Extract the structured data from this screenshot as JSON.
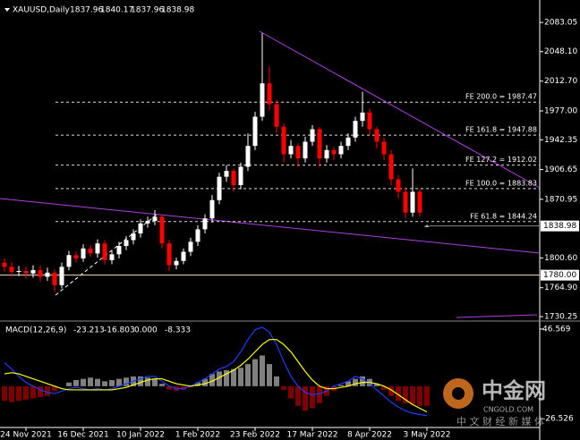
{
  "chart_data": [
    {
      "type": "candlestick",
      "title": "XAUUSD,Daily",
      "title_values": [
        1837.96,
        1840.17,
        1837.96,
        1838.98
      ],
      "categories": [
        null,
        null,
        null,
        "24 Nov 2021",
        null,
        null,
        null,
        null,
        null,
        null,
        null,
        "16 Dec 2021",
        null,
        null,
        null,
        null,
        null,
        null,
        null,
        "10 Jan 2022",
        null,
        null,
        null,
        null,
        null,
        null,
        null,
        "1 Feb 2022",
        null,
        null,
        null,
        null,
        null,
        null,
        null,
        "23 Feb 2022",
        null,
        null,
        null,
        null,
        null,
        null,
        null,
        "17 Mar 2022",
        null,
        null,
        null,
        null,
        null,
        null,
        null,
        "8 Apr 2022",
        null,
        null,
        null,
        null,
        null,
        null,
        null,
        "3 May 2022"
      ],
      "open": [
        1795,
        1790,
        1784,
        1785,
        1782,
        1786,
        1778,
        1783,
        1768,
        1790,
        1804,
        1800,
        1812,
        1806,
        1818,
        1798,
        1805,
        1815,
        1822,
        1830,
        1842,
        1845,
        1850,
        1818,
        1792,
        1797,
        1808,
        1820,
        1835,
        1848,
        1870,
        1898,
        1905,
        1888,
        1910,
        1935,
        1970,
        2010,
        1985,
        1958,
        1925,
        1935,
        1920,
        1940,
        1955,
        1920,
        1930,
        1925,
        1935,
        1945,
        1965,
        1975,
        1955,
        1940,
        1925,
        1895,
        1880,
        1855,
        1880,
        1837.96
      ],
      "high": [
        1800,
        1796,
        1791,
        1790,
        1792,
        1792,
        1789,
        1787,
        1795,
        1809,
        1808,
        1817,
        1816,
        1823,
        1822,
        1810,
        1820,
        1827,
        1835,
        1847,
        1850,
        1858,
        1853,
        1822,
        1801,
        1812,
        1825,
        1840,
        1853,
        1876,
        1903,
        1912,
        1908,
        1915,
        1950,
        1976,
        2070,
        2030,
        1990,
        1962,
        1942,
        1938,
        1946,
        1960,
        1958,
        1936,
        1934,
        1940,
        1950,
        1970,
        2000,
        1980,
        1958,
        1945,
        1930,
        1900,
        1885,
        1908,
        1883,
        1840.17
      ],
      "low": [
        1784,
        1778,
        1779,
        1776,
        1777,
        1772,
        1773,
        1760,
        1764,
        1786,
        1795,
        1796,
        1802,
        1801,
        1793,
        1793,
        1800,
        1810,
        1817,
        1825,
        1837,
        1840,
        1812,
        1785,
        1787,
        1793,
        1803,
        1815,
        1830,
        1843,
        1865,
        1892,
        1880,
        1883,
        1905,
        1930,
        1965,
        1978,
        1950,
        1915,
        1920,
        1910,
        1915,
        1935,
        1910,
        1915,
        1918,
        1920,
        1930,
        1940,
        1958,
        1948,
        1932,
        1918,
        1888,
        1872,
        1848,
        1850,
        1850,
        1837.96
      ],
      "close": [
        1790,
        1784,
        1785,
        1782,
        1786,
        1778,
        1783,
        1768,
        1790,
        1804,
        1800,
        1812,
        1806,
        1818,
        1798,
        1805,
        1815,
        1822,
        1830,
        1842,
        1845,
        1850,
        1818,
        1792,
        1797,
        1808,
        1820,
        1835,
        1848,
        1870,
        1898,
        1905,
        1888,
        1910,
        1935,
        1970,
        2010,
        1985,
        1958,
        1925,
        1935,
        1920,
        1940,
        1955,
        1920,
        1930,
        1925,
        1935,
        1945,
        1965,
        1975,
        1955,
        1940,
        1925,
        1895,
        1880,
        1855,
        1880,
        1855,
        1838.98
      ],
      "up_color": "#ffffff",
      "down_color": "#ff0000",
      "ylim": [
        1726,
        2110
      ],
      "yticks": [
        {
          "value": 2083.05,
          "label": "2083.05"
        },
        {
          "value": 2048.1,
          "label": "2048.10"
        },
        {
          "value": 2012.7,
          "label": "2012.70"
        },
        {
          "value": 1977,
          "label": "1977.00"
        },
        {
          "value": 1942.35,
          "label": "1942.35"
        },
        {
          "value": 1906.65,
          "label": "1906.65"
        },
        {
          "value": 1870.95,
          "label": "1870.95"
        },
        {
          "value": 1800.6,
          "label": "1800.60"
        },
        {
          "value": 1764.9,
          "label": "1764.90"
        },
        {
          "value": 1730.25,
          "label": "1730.25"
        }
      ],
      "fib_levels": [
        {
          "value": 1987.47,
          "label": "FE 200.0 = 1987.47"
        },
        {
          "value": 1947.88,
          "label": "FE 161.8 = 1947.88"
        },
        {
          "value": 1912.02,
          "label": "FE 127.2 = 1912.02"
        },
        {
          "value": 1883.83,
          "label": "FE 100.0 = 1883.83"
        },
        {
          "value": 1844.24,
          "label": "FE 61.8 = 1844.24"
        }
      ],
      "hline": {
        "value": 1780,
        "label": "1780.00"
      }
    },
    {
      "type": "macd",
      "title": "MACD(12,26,9)",
      "title_values": [
        {
          "value": -23.213,
          "label": "-23.213"
        },
        {
          "value": -16.803,
          "label": "-16.803"
        },
        {
          "value": 0,
          "label": "0.000"
        },
        {
          "value": -8.333,
          "label": "-8.333"
        }
      ],
      "histogram": [
        -12,
        -13,
        -12,
        -11,
        -10,
        -9,
        -8,
        -4,
        0,
        3,
        5,
        6,
        7,
        6,
        4,
        5,
        6,
        7,
        8,
        8,
        7,
        6,
        2,
        -3,
        -4,
        -3,
        -1,
        3,
        6,
        10,
        12,
        13,
        14,
        15,
        18,
        22,
        25,
        18,
        8,
        -3,
        -10,
        -16,
        -20,
        -18,
        -14,
        -8,
        -4,
        1,
        4,
        6,
        8,
        6,
        2,
        -3,
        -8,
        -12,
        -14,
        -15,
        -16,
        -16
      ],
      "positive_color": "#ffffff",
      "negative_color": "#ff0000",
      "series": [
        {
          "color": "#1e3cff",
          "values": [
            19,
            14,
            8,
            3,
            0,
            -3,
            -5,
            -6,
            -4,
            -2,
            -1,
            -2,
            -3,
            -2,
            -3,
            -2,
            0,
            2,
            4,
            6,
            8,
            8,
            4,
            0,
            -2,
            -2,
            0,
            3,
            6,
            10,
            14,
            16,
            20,
            28,
            38,
            46,
            48,
            44,
            34,
            20,
            8,
            0,
            -5,
            -7,
            -6,
            -4,
            0,
            2,
            4,
            8,
            6,
            2,
            -3,
            -8,
            -13,
            -17,
            -20,
            -22,
            -23,
            -24
          ]
        },
        {
          "color": "#ffff00",
          "values": [
            10,
            11,
            10,
            8,
            6,
            4,
            2,
            0,
            -2,
            -3,
            -3,
            -3,
            -3,
            -3,
            -3,
            -3,
            -2,
            -1,
            1,
            3,
            5,
            6,
            6,
            4,
            2,
            1,
            0,
            1,
            2,
            4,
            7,
            10,
            13,
            17,
            22,
            28,
            34,
            38,
            38,
            34,
            28,
            20,
            12,
            5,
            0,
            -2,
            -2,
            -1,
            0,
            2,
            3,
            3,
            2,
            0,
            -3,
            -7,
            -11,
            -15,
            -18,
            -21
          ]
        }
      ],
      "ylim": [
        -42.4,
        51.6
      ],
      "yticks": [
        46.569,
        -26.526
      ]
    }
  ],
  "watermark": {
    "brand": "中金网",
    "site": "CNGOLD.COM",
    "tagline": "中 文 财 经 新 媒 体"
  }
}
